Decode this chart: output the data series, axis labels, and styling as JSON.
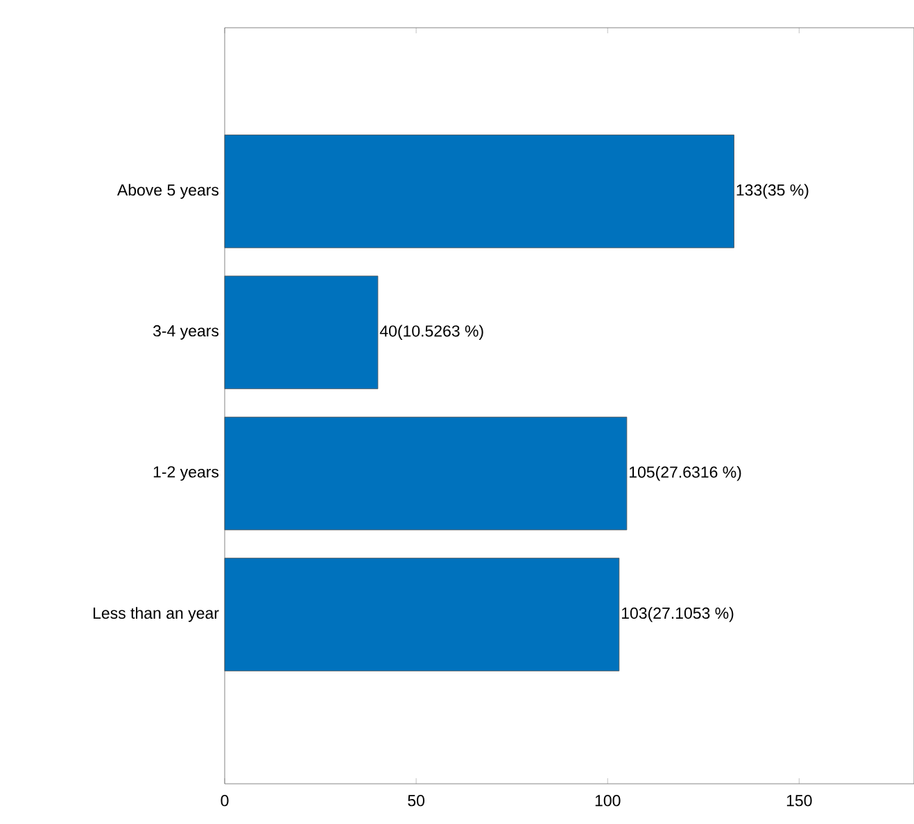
{
  "chart_data": {
    "type": "bar",
    "orientation": "horizontal",
    "categories": [
      "Above 5 years",
      "3-4 years",
      "1-2 years",
      "Less than an year"
    ],
    "values": [
      133,
      40,
      105,
      103
    ],
    "value_labels": [
      "133(35 %)",
      "40(10.5263 %)",
      "105(27.6316 %)",
      "103(27.1053 %)"
    ],
    "color": "#0072bd",
    "xlim": [
      0,
      180
    ],
    "xticks": [
      0,
      50,
      100,
      150
    ]
  }
}
